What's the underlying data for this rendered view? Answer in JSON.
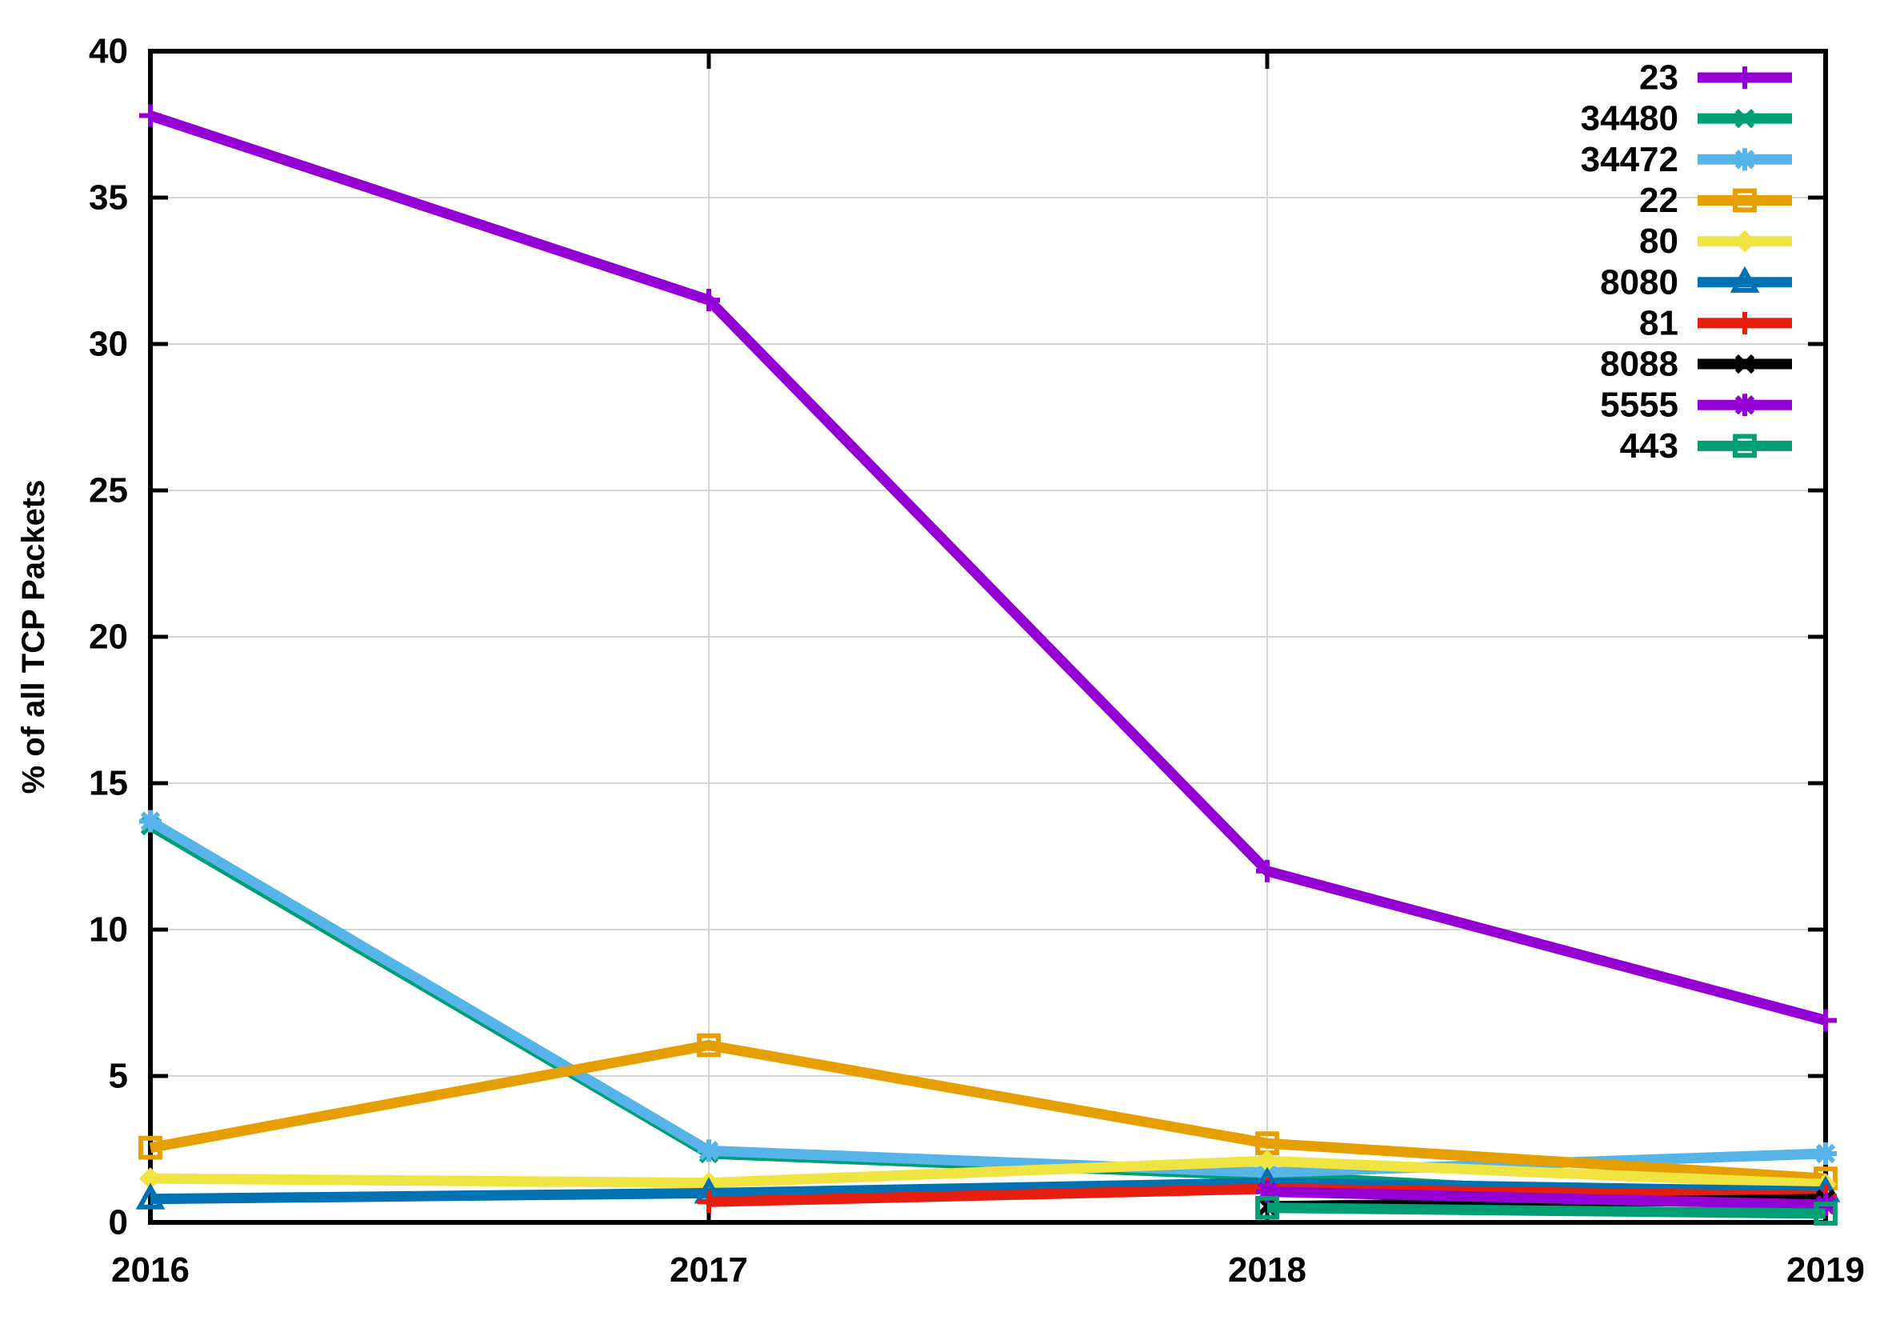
{
  "figure": {
    "background": "#ffffff",
    "axis_color": "#000000",
    "grid_color": "#d4d4d4",
    "text_color": "#000000"
  },
  "chart_data": {
    "type": "line",
    "title": "",
    "xlabel": "",
    "ylabel": "% of all TCP Packets",
    "xlim": [
      2016,
      2019
    ],
    "ylim": [
      0,
      40
    ],
    "xticks": [
      "2016",
      "2017",
      "2018",
      "2019"
    ],
    "xtick_values": [
      2016,
      2017,
      2018,
      2019
    ],
    "yticks": [
      "0",
      "5",
      "10",
      "15",
      "20",
      "25",
      "30",
      "35",
      "40"
    ],
    "ytick_values": [
      0,
      5,
      10,
      15,
      20,
      25,
      30,
      35,
      40
    ],
    "grid": true,
    "legend_position": "top-right-inside",
    "legend_entries": [
      "23",
      "34480",
      "34472",
      "22",
      "80",
      "8080",
      "81",
      "8088",
      "5555",
      "443"
    ],
    "series": [
      {
        "name": "23",
        "color": "#9400d3",
        "marker": "plus",
        "x": [
          2016,
          2017,
          2018,
          2019
        ],
        "values": [
          37.8,
          31.5,
          12.0,
          6.9
        ]
      },
      {
        "name": "34480",
        "color": "#009e73",
        "marker": "x",
        "x": [
          2016,
          2017,
          2018,
          2019
        ],
        "values": [
          13.55,
          2.35,
          1.6,
          0.6
        ]
      },
      {
        "name": "34472",
        "color": "#56b4e9",
        "marker": "asterisk",
        "x": [
          2016,
          2017,
          2018,
          2019
        ],
        "values": [
          13.7,
          2.45,
          1.7,
          2.35
        ]
      },
      {
        "name": "22",
        "color": "#e69f00",
        "marker": "square-open",
        "x": [
          2016,
          2017,
          2018,
          2019
        ],
        "values": [
          2.55,
          6.05,
          2.7,
          1.5
        ]
      },
      {
        "name": "80",
        "color": "#f0e442",
        "marker": "diamond",
        "x": [
          2016,
          2017,
          2018,
          2019
        ],
        "values": [
          1.5,
          1.35,
          2.1,
          1.3
        ]
      },
      {
        "name": "8080",
        "color": "#0072b2",
        "marker": "triangle-open",
        "x": [
          2016,
          2017,
          2018,
          2019
        ],
        "values": [
          0.8,
          1.0,
          1.35,
          1.05
        ]
      },
      {
        "name": "81",
        "color": "#e51e10",
        "marker": "plus",
        "x": [
          2017,
          2018,
          2019
        ],
        "values": [
          0.7,
          1.15,
          0.9
        ]
      },
      {
        "name": "8088",
        "color": "#000000",
        "marker": "x",
        "x": [
          2018,
          2019
        ],
        "values": [
          0.55,
          0.8
        ]
      },
      {
        "name": "5555",
        "color": "#9400d3",
        "marker": "asterisk",
        "x": [
          2018,
          2019
        ],
        "values": [
          1.05,
          0.6
        ]
      },
      {
        "name": "443",
        "color": "#009e73",
        "marker": "square-open",
        "x": [
          2018,
          2019
        ],
        "values": [
          0.5,
          0.3
        ]
      }
    ]
  }
}
